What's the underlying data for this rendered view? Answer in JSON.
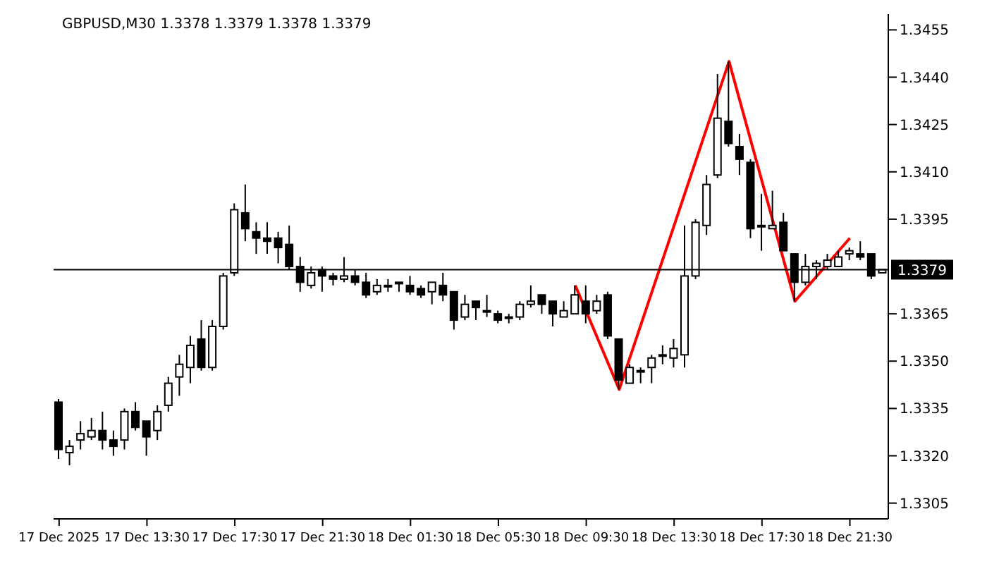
{
  "chart_data": {
    "type": "candlestick",
    "title": "GBPUSD,M30  1.3378 1.3379 1.3378 1.3379",
    "categories": [
      "17 Dec 2025",
      null,
      null,
      null,
      null,
      null,
      null,
      null,
      "17 Dec 13:30",
      null,
      null,
      null,
      null,
      null,
      null,
      null,
      "17 Dec 17:30",
      null,
      null,
      null,
      null,
      null,
      null,
      null,
      "17 Dec 21:30",
      null,
      null,
      null,
      null,
      null,
      null,
      null,
      "18 Dec 01:30",
      null,
      null,
      null,
      null,
      null,
      null,
      null,
      "18 Dec 05:30",
      null,
      null,
      null,
      null,
      null,
      null,
      null,
      "18 Dec 09:30",
      null,
      null,
      null,
      null,
      null,
      null,
      null,
      "18 Dec 13:30",
      null,
      null,
      null,
      null,
      null,
      null,
      null,
      "18 Dec 17:30",
      null,
      null,
      null,
      null,
      null,
      null,
      null,
      "18 Dec 21:30",
      null,
      null,
      null
    ],
    "ohlc": [
      [
        1.3337,
        1.3338,
        1.3319,
        1.3322
      ],
      [
        1.3321,
        1.3325,
        1.3317,
        1.3323
      ],
      [
        1.3325,
        1.3331,
        1.3322,
        1.3327
      ],
      [
        1.3326,
        1.3332,
        1.3325,
        1.3328
      ],
      [
        1.3328,
        1.3334,
        1.3322,
        1.3325
      ],
      [
        1.3325,
        1.3328,
        1.332,
        1.3323
      ],
      [
        1.3325,
        1.3335,
        1.3322,
        1.3334
      ],
      [
        1.3334,
        1.3337,
        1.3328,
        1.3329
      ],
      [
        1.3331,
        1.3331,
        1.332,
        1.3326
      ],
      [
        1.3328,
        1.3336,
        1.3325,
        1.3334
      ],
      [
        1.3336,
        1.3345,
        1.3334,
        1.3343
      ],
      [
        1.3345,
        1.3352,
        1.3339,
        1.3349
      ],
      [
        1.3348,
        1.3358,
        1.3343,
        1.3355
      ],
      [
        1.3357,
        1.3363,
        1.3347,
        1.3348
      ],
      [
        1.3348,
        1.3363,
        1.3347,
        1.3361
      ],
      [
        1.3361,
        1.3378,
        1.336,
        1.3377
      ],
      [
        1.3378,
        1.34,
        1.3377,
        1.3398
      ],
      [
        1.3397,
        1.3406,
        1.3388,
        1.3392
      ],
      [
        1.3391,
        1.3394,
        1.3384,
        1.3389
      ],
      [
        1.3389,
        1.3394,
        1.3384,
        1.3388
      ],
      [
        1.3389,
        1.3391,
        1.3381,
        1.3386
      ],
      [
        1.3387,
        1.3393,
        1.3379,
        1.338
      ],
      [
        1.338,
        1.3383,
        1.3372,
        1.3375
      ],
      [
        1.3374,
        1.338,
        1.3373,
        1.3378
      ],
      [
        1.3379,
        1.338,
        1.3372,
        1.3377
      ],
      [
        1.3377,
        1.3378,
        1.3374,
        1.3376
      ],
      [
        1.3376,
        1.3383,
        1.3375,
        1.3377
      ],
      [
        1.3377,
        1.3379,
        1.3374,
        1.3375
      ],
      [
        1.3375,
        1.3378,
        1.337,
        1.3371
      ],
      [
        1.3372,
        1.3376,
        1.3371,
        1.3374
      ],
      [
        1.3374,
        1.3376,
        1.3372,
        1.3374
      ],
      [
        1.3375,
        1.3375,
        1.3372,
        1.3375
      ],
      [
        1.3374,
        1.3377,
        1.3371,
        1.3372
      ],
      [
        1.3373,
        1.3374,
        1.337,
        1.3371
      ],
      [
        1.3372,
        1.3375,
        1.3368,
        1.3375
      ],
      [
        1.3374,
        1.3378,
        1.3369,
        1.3371
      ],
      [
        1.3372,
        1.3372,
        1.336,
        1.3363
      ],
      [
        1.3364,
        1.3371,
        1.3363,
        1.3368
      ],
      [
        1.3369,
        1.3369,
        1.3363,
        1.3367
      ],
      [
        1.3366,
        1.3371,
        1.3364,
        1.3366
      ],
      [
        1.3365,
        1.3366,
        1.3362,
        1.3363
      ],
      [
        1.3364,
        1.3365,
        1.3362,
        1.3364
      ],
      [
        1.3364,
        1.3369,
        1.3363,
        1.3368
      ],
      [
        1.3368,
        1.3374,
        1.3367,
        1.3369
      ],
      [
        1.3371,
        1.3371,
        1.3365,
        1.3368
      ],
      [
        1.3369,
        1.3369,
        1.3361,
        1.3365
      ],
      [
        1.3364,
        1.3369,
        1.3364,
        1.3366
      ],
      [
        1.3365,
        1.3374,
        1.3365,
        1.3371
      ],
      [
        1.3369,
        1.3374,
        1.3362,
        1.3365
      ],
      [
        1.3366,
        1.3371,
        1.3365,
        1.3369
      ],
      [
        1.3371,
        1.3372,
        1.3357,
        1.3358
      ],
      [
        1.3357,
        1.3357,
        1.3341,
        1.3344
      ],
      [
        1.3343,
        1.3349,
        1.3343,
        1.3348
      ],
      [
        1.3347,
        1.3348,
        1.3343,
        1.3347
      ],
      [
        1.3348,
        1.3352,
        1.3343,
        1.3351
      ],
      [
        1.3352,
        1.3355,
        1.3349,
        1.3352
      ],
      [
        1.3351,
        1.3357,
        1.3348,
        1.3354
      ],
      [
        1.3352,
        1.3393,
        1.3348,
        1.3377
      ],
      [
        1.3377,
        1.3395,
        1.3376,
        1.3394
      ],
      [
        1.3393,
        1.3409,
        1.339,
        1.3406
      ],
      [
        1.3409,
        1.3441,
        1.3408,
        1.3427
      ],
      [
        1.3426,
        1.3445,
        1.3418,
        1.3419
      ],
      [
        1.3418,
        1.3422,
        1.3409,
        1.3414
      ],
      [
        1.3413,
        1.3414,
        1.3389,
        1.3392
      ],
      [
        1.3393,
        1.3403,
        1.3385,
        1.3393
      ],
      [
        1.3392,
        1.3404,
        1.3392,
        1.3393
      ],
      [
        1.3394,
        1.3397,
        1.3385,
        1.3385
      ],
      [
        1.3384,
        1.3384,
        1.3369,
        1.3375
      ],
      [
        1.3375,
        1.3384,
        1.3374,
        1.338
      ],
      [
        1.338,
        1.3382,
        1.3376,
        1.3381
      ],
      [
        1.338,
        1.3384,
        1.3379,
        1.3382
      ],
      [
        1.338,
        1.3385,
        1.338,
        1.3383
      ],
      [
        1.3384,
        1.3386,
        1.3382,
        1.3385
      ],
      [
        1.3384,
        1.3388,
        1.3382,
        1.3383
      ],
      [
        1.3384,
        1.3384,
        1.3376,
        1.3377
      ],
      [
        1.3378,
        1.3379,
        1.3378,
        1.3379
      ]
    ],
    "series": [
      {
        "type": "line",
        "color": "#ff0000",
        "values": [
          null,
          null,
          null,
          null,
          null,
          null,
          null,
          null,
          null,
          null,
          null,
          null,
          null,
          null,
          null,
          null,
          null,
          null,
          null,
          null,
          null,
          null,
          null,
          null,
          null,
          null,
          null,
          null,
          null,
          null,
          null,
          null,
          null,
          null,
          null,
          null,
          null,
          null,
          null,
          null,
          null,
          null,
          null,
          null,
          null,
          null,
          null,
          1.3374,
          null,
          null,
          null,
          1.3341,
          null,
          null,
          null,
          null,
          null,
          null,
          null,
          null,
          null,
          1.3445,
          null,
          null,
          null,
          null,
          null,
          1.3369,
          null,
          null,
          null,
          null,
          1.3389,
          null,
          null,
          null
        ]
      }
    ],
    "ylim": [
      1.33,
      1.346
    ],
    "yticks": [
      1.3305,
      {
        "value": 1.332,
        "label": "1.3320"
      },
      1.3335,
      {
        "value": 1.335,
        "label": "1.3350"
      },
      1.3365,
      1.3395,
      {
        "value": 1.341,
        "label": "1.3410"
      },
      1.3425,
      {
        "value": 1.344,
        "label": "1.3440"
      },
      1.3455
    ],
    "ref_lines": [
      {
        "axis": "y",
        "value": 1.3379,
        "label": "1.3379",
        "color": "#000000"
      }
    ],
    "grid": false,
    "legend": false
  }
}
